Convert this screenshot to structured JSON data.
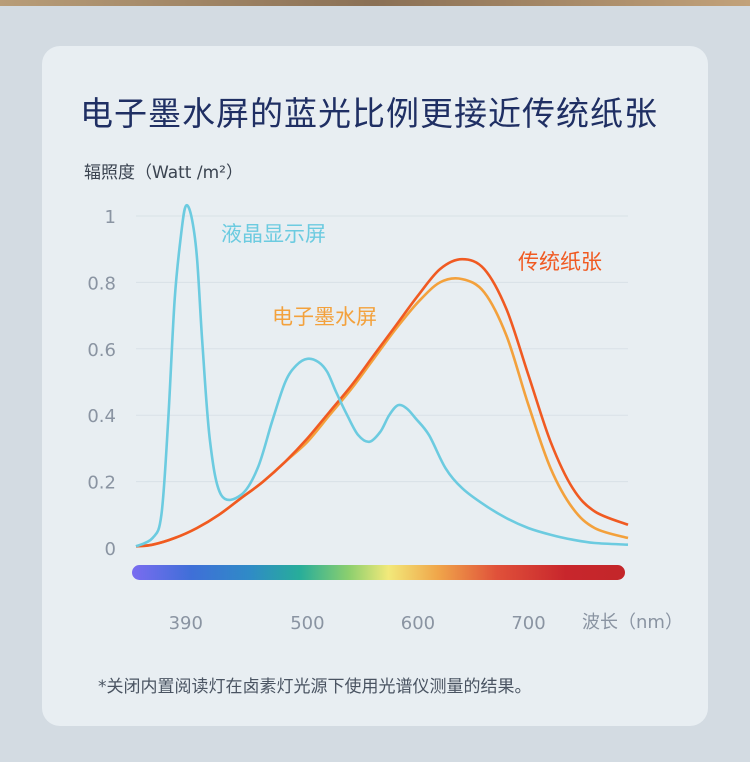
{
  "title": "电子墨水屏的蓝光比例更接近传统纸张",
  "footnote": "*关闭内置阅读灯在卤素灯光源下使用光谱仪测量的结果。",
  "colors": {
    "page_bg": "#d3dbe2",
    "card_bg": "#e8eef2",
    "title": "#1f2f63",
    "lcd": "#6ccbe0",
    "eink": "#f3a13c",
    "paper": "#f05a22"
  },
  "chart_data": {
    "type": "line",
    "title": "电子墨水屏的蓝光比例更接近传统纸张",
    "ylabel": "辐照度（Watt /m²）",
    "xlabel": "波长（nm）",
    "ylim": [
      0,
      1
    ],
    "yticks": [
      "0",
      "0.2",
      "0.4",
      "0.6",
      "0.8",
      "1"
    ],
    "ytick_values": [
      0,
      0.2,
      0.4,
      0.6,
      0.8,
      1
    ],
    "xticks": [
      "390",
      "500",
      "600",
      "700"
    ],
    "xtick_values": [
      390,
      500,
      600,
      700
    ],
    "xlim": [
      345,
      790
    ],
    "grid": true,
    "spectrum_bar": true,
    "series": [
      {
        "name": "液晶显示屏",
        "color": "#6ccbe0",
        "x": [
          345,
          360,
          368,
          374,
          380,
          386,
          390,
          395,
          400,
          405,
          412,
          422,
          440,
          455,
          468,
          480,
          490,
          500,
          510,
          518,
          526,
          536,
          546,
          556,
          566,
          574,
          582,
          590,
          598,
          610,
          625,
          640,
          660,
          680,
          700,
          720,
          740,
          760,
          790
        ],
        "y": [
          0.005,
          0.03,
          0.1,
          0.38,
          0.75,
          0.95,
          1.03,
          1.0,
          0.88,
          0.62,
          0.32,
          0.16,
          0.16,
          0.24,
          0.38,
          0.5,
          0.55,
          0.57,
          0.56,
          0.53,
          0.47,
          0.4,
          0.34,
          0.32,
          0.35,
          0.4,
          0.43,
          0.42,
          0.39,
          0.34,
          0.24,
          0.18,
          0.13,
          0.09,
          0.06,
          0.04,
          0.025,
          0.015,
          0.01
        ]
      },
      {
        "name": "电子墨水屏",
        "color": "#f3a13c",
        "x": [
          345,
          360,
          380,
          400,
          420,
          440,
          460,
          480,
          500,
          520,
          540,
          560,
          580,
          600,
          620,
          640,
          660,
          680,
          700,
          720,
          740,
          760,
          790
        ],
        "y": [
          0.005,
          0.01,
          0.03,
          0.06,
          0.1,
          0.15,
          0.2,
          0.26,
          0.32,
          0.4,
          0.48,
          0.57,
          0.66,
          0.74,
          0.8,
          0.81,
          0.77,
          0.64,
          0.43,
          0.24,
          0.12,
          0.06,
          0.03
        ]
      },
      {
        "name": "传统纸张",
        "color": "#f05a22",
        "x": [
          345,
          360,
          380,
          400,
          420,
          440,
          460,
          480,
          500,
          520,
          540,
          560,
          580,
          600,
          620,
          640,
          660,
          680,
          700,
          720,
          740,
          760,
          790
        ],
        "y": [
          0.005,
          0.01,
          0.03,
          0.06,
          0.1,
          0.15,
          0.2,
          0.26,
          0.33,
          0.41,
          0.49,
          0.58,
          0.67,
          0.76,
          0.84,
          0.87,
          0.84,
          0.72,
          0.52,
          0.32,
          0.18,
          0.11,
          0.07
        ]
      }
    ]
  }
}
